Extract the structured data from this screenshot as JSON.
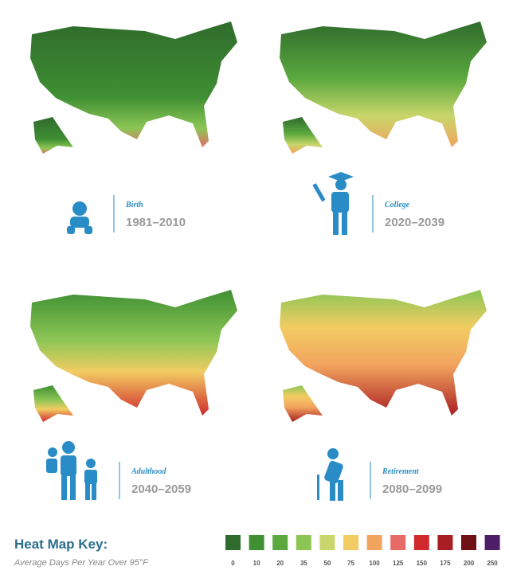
{
  "panels": [
    {
      "stage": "Birth",
      "period": "1981–2010"
    },
    {
      "stage": "College",
      "period": "2020–2039"
    },
    {
      "stage": "Adulthood",
      "period": "2040–2059"
    },
    {
      "stage": "Retirement",
      "period": "2080–2099"
    }
  ],
  "key": {
    "title": "Heat Map Key:",
    "subtitle": "Average Days Per Year Over 95°F",
    "ticks": [
      0,
      10,
      20,
      35,
      50,
      75,
      100,
      125,
      150,
      175,
      200,
      250
    ],
    "colors": [
      "#2f6b2c",
      "#3f8f33",
      "#5aa83e",
      "#8cc655",
      "#c8d66b",
      "#f2cc62",
      "#f2a35e",
      "#e66b67",
      "#d02a2e",
      "#a91e22",
      "#6e1016",
      "#4c1f68"
    ]
  }
}
